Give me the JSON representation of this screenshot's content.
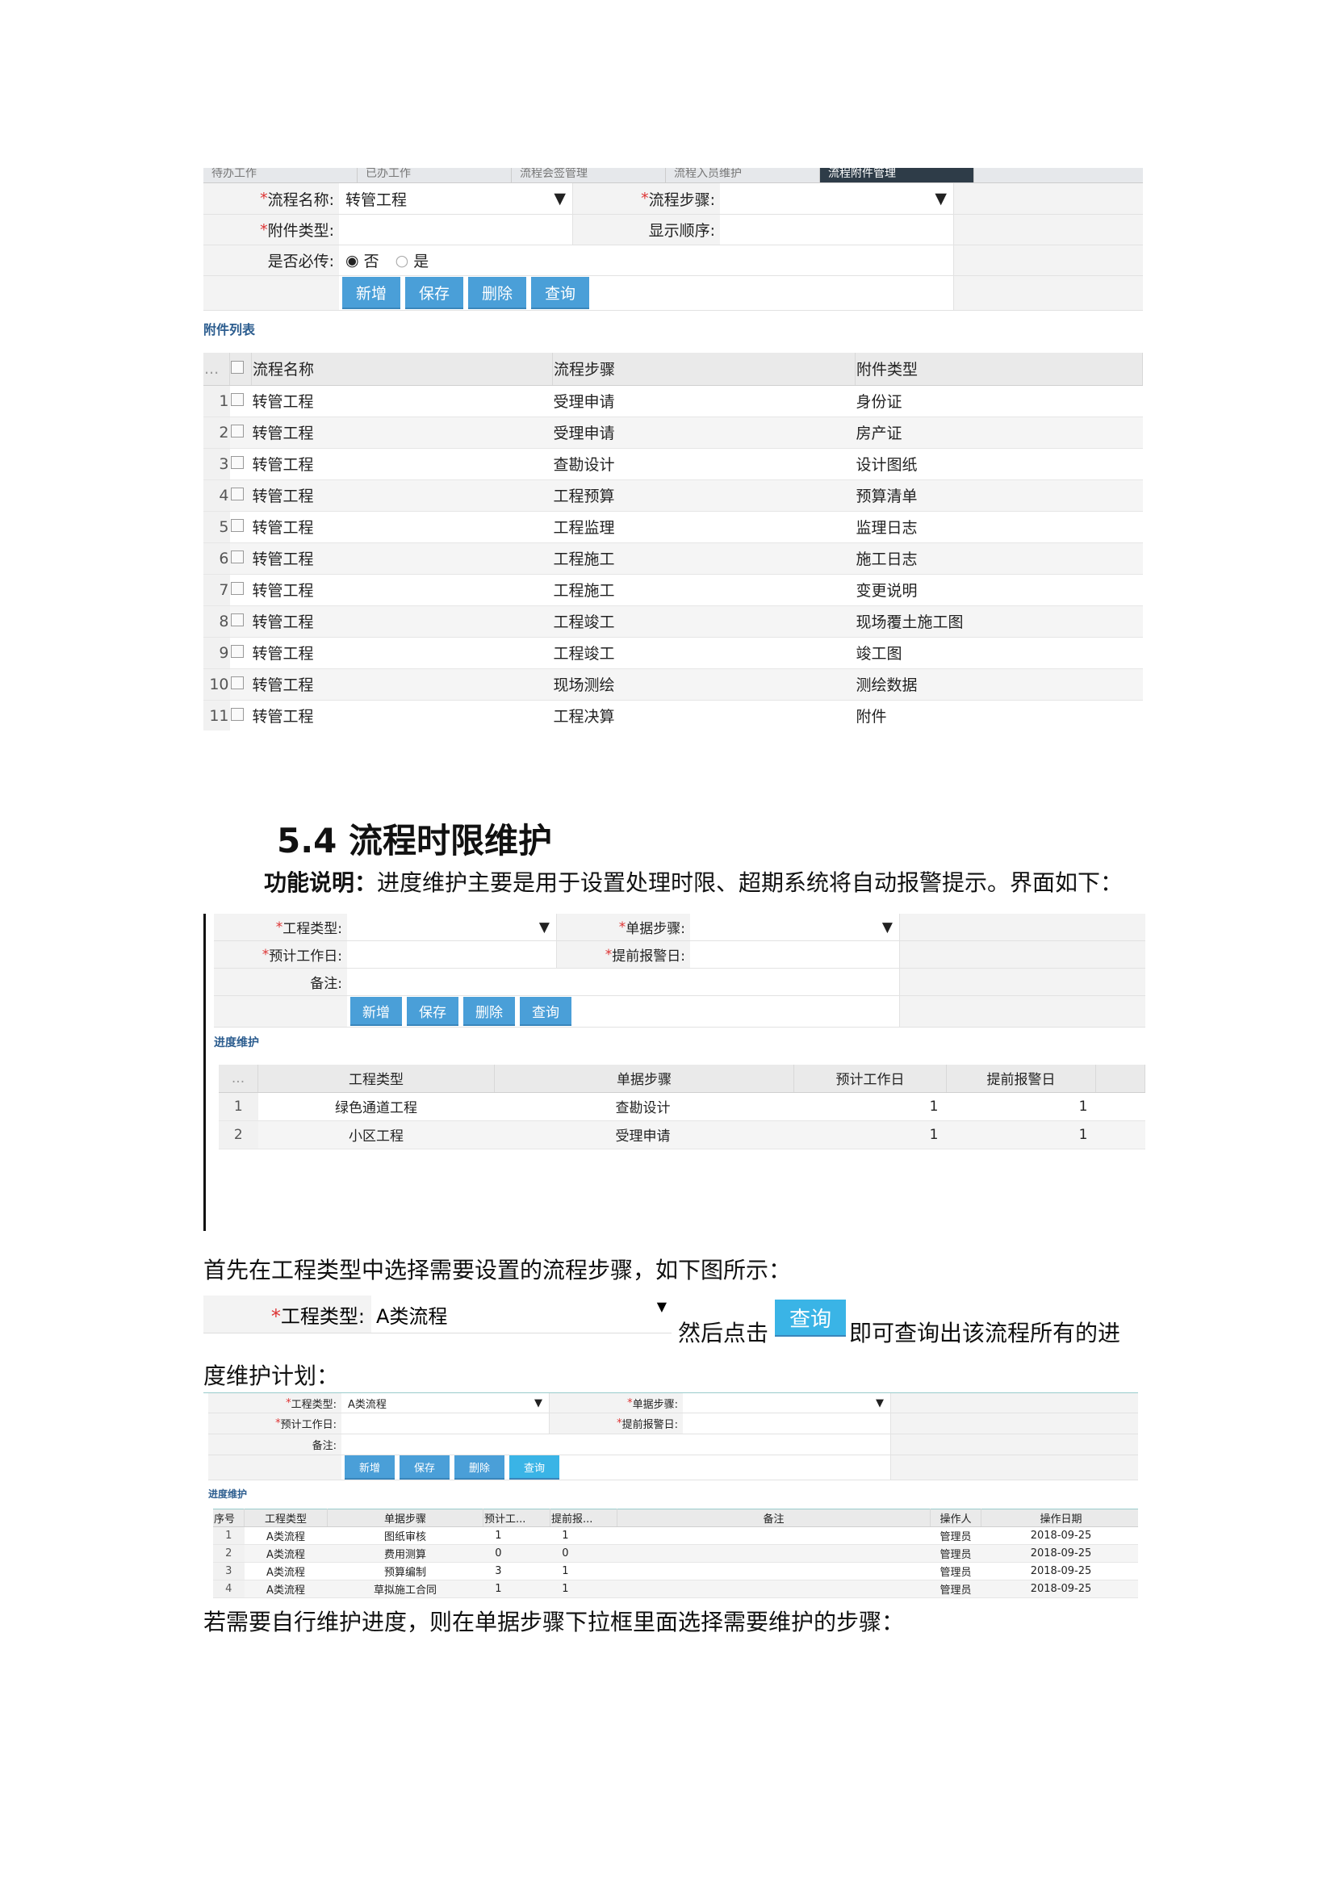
{
  "shot1": {
    "tabs": [
      "待办工作",
      "已办工作",
      "流程会签管理",
      "流程入员维护",
      "流程附件管理"
    ],
    "form": {
      "process_name_label": "流程名称:",
      "process_name_value": "转管工程",
      "process_step_label": "流程步骤:",
      "attach_type_label": "附件类型:",
      "display_order_label": "显示顺序:",
      "required_label": "是否必传:",
      "opt_no": "否",
      "opt_yes": "是",
      "required_value": "否"
    },
    "buttons": {
      "add": "新增",
      "save": "保存",
      "delete": "删除",
      "query": "查询"
    },
    "section_title": "附件列表",
    "columns": [
      "...",
      "流程名称",
      "流程步骤",
      "附件类型"
    ],
    "rows": [
      [
        "1",
        "转管工程",
        "受理申请",
        "身份证"
      ],
      [
        "2",
        "转管工程",
        "受理申请",
        "房产证"
      ],
      [
        "3",
        "转管工程",
        "查勘设计",
        "设计图纸"
      ],
      [
        "4",
        "转管工程",
        "工程预算",
        "预算清单"
      ],
      [
        "5",
        "转管工程",
        "工程监理",
        "监理日志"
      ],
      [
        "6",
        "转管工程",
        "工程施工",
        "施工日志"
      ],
      [
        "7",
        "转管工程",
        "工程施工",
        "变更说明"
      ],
      [
        "8",
        "转管工程",
        "工程竣工",
        "现场覆土施工图"
      ],
      [
        "9",
        "转管工程",
        "工程竣工",
        "竣工图"
      ],
      [
        "10",
        "转管工程",
        "现场测绘",
        "测绘数据"
      ],
      [
        "11",
        "转管工程",
        "工程决算",
        "附件"
      ]
    ]
  },
  "heading": "5.4 流程时限维护",
  "desc_bold": "功能说明：",
  "desc_text": "进度维护主要是用于设置处理时限、超期系统将自动报警提示。界面如下：",
  "shot2": {
    "form": {
      "type_label": "工程类型:",
      "step_label": "单据步骤:",
      "days_label": "预计工作日:",
      "warn_label": "提前报警日:",
      "note_label": "备注:"
    },
    "buttons": {
      "add": "新增",
      "save": "保存",
      "delete": "删除",
      "query": "查询"
    },
    "section_title": "进度维护",
    "columns": [
      "...",
      "工程类型",
      "单据步骤",
      "预计工作日",
      "提前报警日"
    ],
    "rows": [
      [
        "1",
        "绿色通道工程",
        "查勘设计",
        "1",
        "1"
      ],
      [
        "2",
        "小区工程",
        "受理申请",
        "1",
        "1"
      ]
    ]
  },
  "para1": "首先在工程类型中选择需要设置的流程步骤，如下图所示：",
  "inline": {
    "type_label": "工程类型:",
    "type_value": "A类流程",
    "text_before": "然后点击",
    "button": "查询",
    "text_after": "即可查询出该流程所有的进"
  },
  "para2": "度维护计划：",
  "shot3": {
    "form": {
      "type_label": "工程类型:",
      "type_value": "A类流程",
      "step_label": "单据步骤:",
      "days_label": "预计工作日:",
      "warn_label": "提前报警日:",
      "note_label": "备注:"
    },
    "buttons": {
      "add": "新增",
      "save": "保存",
      "delete": "删除",
      "query": "查询"
    },
    "section_title": "进度维护",
    "columns": [
      "序号",
      "工程类型",
      "单据步骤",
      "预计工...",
      "提前报...",
      "备注",
      "操作人",
      "操作日期"
    ],
    "rows": [
      [
        "1",
        "A类流程",
        "图纸审核",
        "1",
        "1",
        "",
        "管理员",
        "2018-09-25"
      ],
      [
        "2",
        "A类流程",
        "费用测算",
        "0",
        "0",
        "",
        "管理员",
        "2018-09-25"
      ],
      [
        "3",
        "A类流程",
        "预算编制",
        "3",
        "1",
        "",
        "管理员",
        "2018-09-25"
      ],
      [
        "4",
        "A类流程",
        "草拟施工合同",
        "1",
        "1",
        "",
        "管理员",
        "2018-09-25"
      ]
    ]
  },
  "para3": "若需要自行维护进度，则在单据步骤下拉框里面选择需要维护的步骤："
}
